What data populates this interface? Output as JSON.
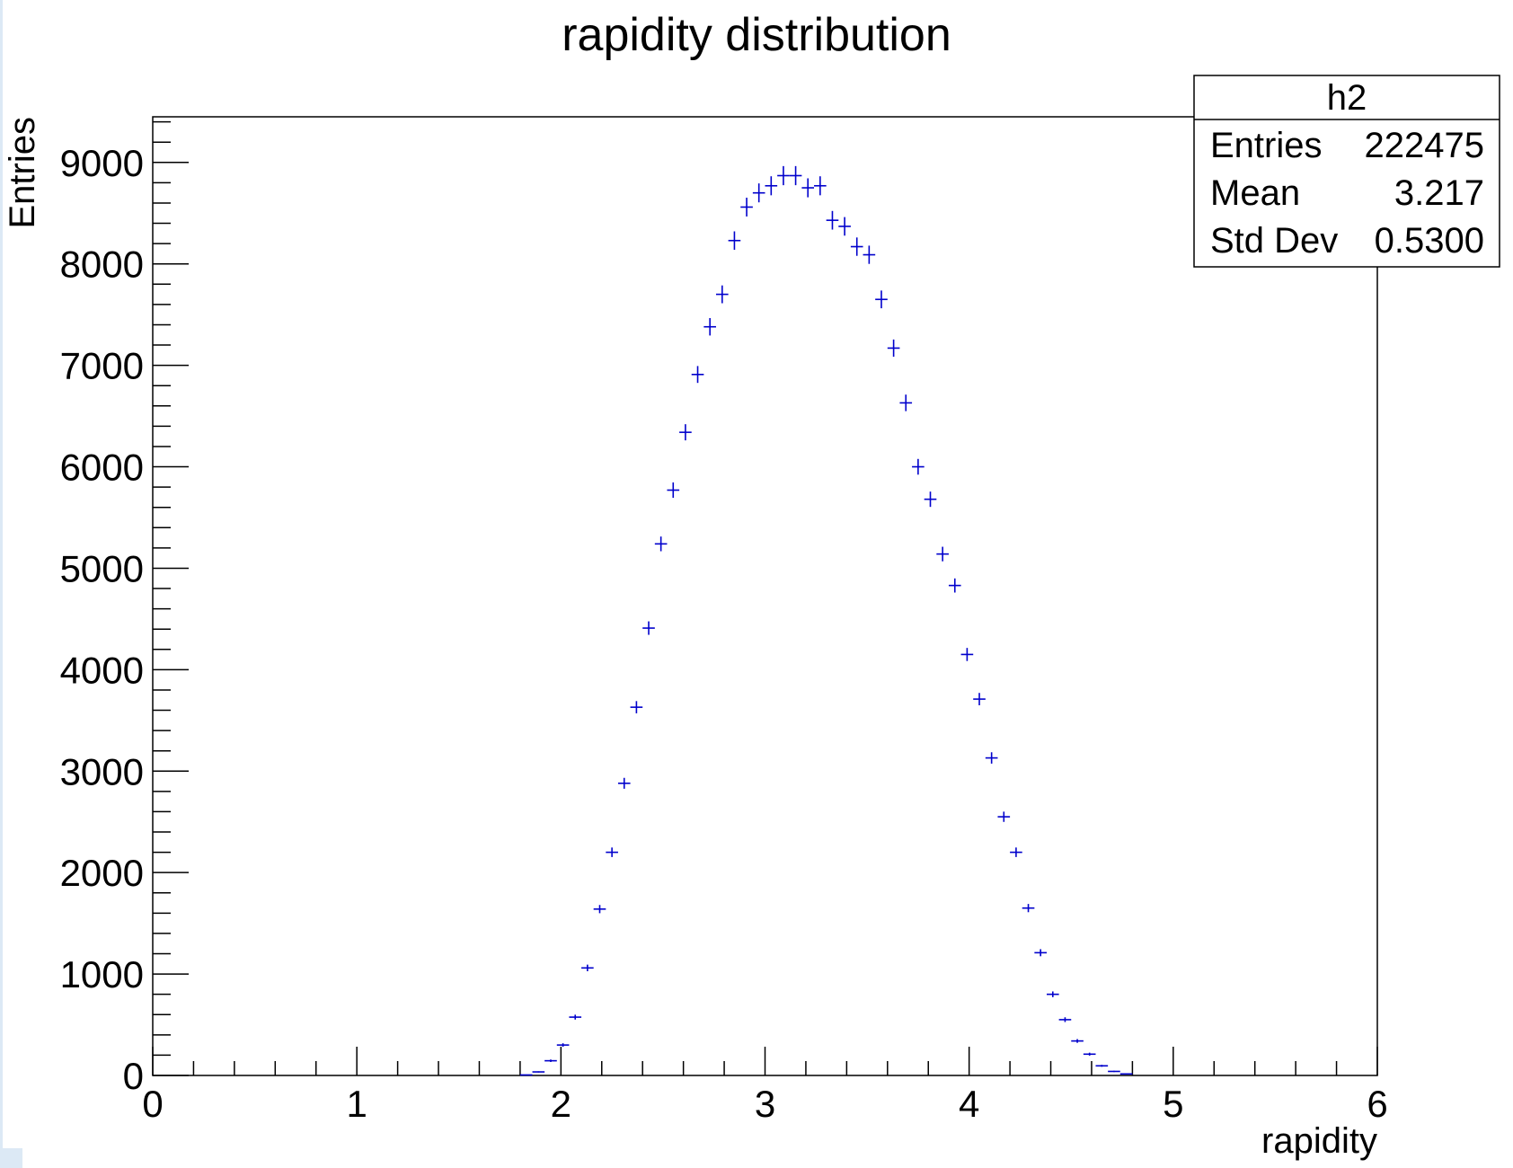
{
  "chart_data": {
    "type": "scatter",
    "title": "rapidity distribution",
    "xlabel": "rapidity",
    "ylabel": "Entries",
    "xlim": [
      0,
      6
    ],
    "ylim": [
      0,
      9450
    ],
    "xticks": [
      "0",
      "1",
      "2",
      "3",
      "4",
      "5",
      "6"
    ],
    "yticks": [
      "0",
      "1000",
      "2000",
      "3000",
      "4000",
      "5000",
      "6000",
      "7000",
      "8000",
      "9000"
    ],
    "grid": false,
    "marker": "error-bar cross",
    "color": "#0000cc",
    "bin_width": 0.06,
    "x": [
      1.83,
      1.89,
      1.95,
      2.01,
      2.07,
      2.13,
      2.19,
      2.25,
      2.31,
      2.37,
      2.43,
      2.49,
      2.55,
      2.61,
      2.67,
      2.73,
      2.79,
      2.85,
      2.91,
      2.97,
      3.03,
      3.09,
      3.15,
      3.21,
      3.27,
      3.33,
      3.39,
      3.45,
      3.51,
      3.57,
      3.63,
      3.69,
      3.75,
      3.81,
      3.87,
      3.93,
      3.99,
      4.05,
      4.11,
      4.17,
      4.23,
      4.29,
      4.35,
      4.41,
      4.47,
      4.53,
      4.59,
      4.65,
      4.71,
      4.77
    ],
    "values": [
      5,
      35,
      145,
      300,
      575,
      1060,
      1640,
      2200,
      2880,
      3630,
      4410,
      5240,
      5770,
      6340,
      6910,
      7380,
      7700,
      8230,
      8560,
      8700,
      8770,
      8870,
      8870,
      8750,
      8770,
      8430,
      8370,
      8170,
      8090,
      7650,
      7170,
      6630,
      6000,
      5680,
      5140,
      4830,
      4150,
      3710,
      3130,
      2550,
      2200,
      1650,
      1210,
      800,
      550,
      340,
      210,
      95,
      40,
      15
    ],
    "stats_box": {
      "title": "h2",
      "rows": [
        {
          "label": "Entries",
          "value": "222475"
        },
        {
          "label": "Mean",
          "value": "3.217"
        },
        {
          "label": "Std Dev",
          "value": "0.5300"
        }
      ]
    }
  }
}
